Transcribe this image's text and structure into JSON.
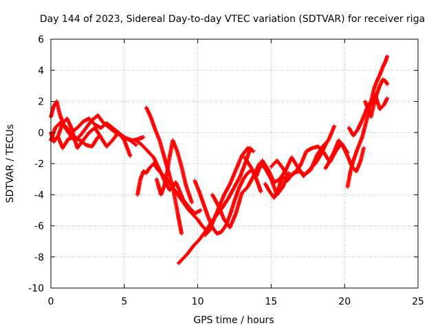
{
  "chart_data": {
    "type": "scatter",
    "title": "Day 144 of 2023, Sidereal Day-to-day VTEC variation (SDTVAR) for receiver riga",
    "xlabel": "GPS time / hours",
    "ylabel": "SDTVAR / TECUs",
    "xlim": [
      0,
      25
    ],
    "ylim": [
      -10,
      6
    ],
    "x_ticks": [
      "0",
      "5",
      "10",
      "15",
      "20",
      "25"
    ],
    "y_ticks": [
      "-10",
      "-8",
      "-6",
      "-4",
      "-2",
      "0",
      "2",
      "4",
      "6"
    ],
    "grid": true,
    "marker": "+",
    "color": "#ff0000",
    "series": [
      {
        "x": [
          0.0,
          0.3,
          0.6,
          1.0,
          1.4,
          1.8,
          2.2,
          2.6,
          3.0,
          3.4,
          3.8,
          4.2,
          4.6,
          5.0,
          5.4,
          5.8
        ],
        "y": [
          -0.5,
          0.3,
          0.6,
          0.4,
          0.0,
          0.3,
          0.7,
          0.9,
          0.5,
          0.3,
          0.6,
          0.3,
          0.0,
          -0.3,
          -0.5,
          -0.8
        ]
      },
      {
        "x": [
          0.0,
          0.2,
          0.4,
          0.6,
          0.9,
          1.2,
          1.6,
          2.0,
          2.4,
          2.8,
          3.2,
          3.6,
          4.0,
          4.4,
          4.8,
          5.2,
          5.6,
          6.0,
          6.3
        ],
        "y": [
          1.0,
          1.7,
          2.0,
          1.2,
          0.4,
          0.0,
          -0.5,
          -0.2,
          0.3,
          0.8,
          1.1,
          0.6,
          0.3,
          0.0,
          -0.2,
          -0.4,
          -0.5,
          -0.4,
          -0.3
        ]
      },
      {
        "x": [
          0.0,
          0.2,
          0.5,
          0.8,
          1.1,
          1.4,
          1.8,
          2.2,
          2.6,
          3.0,
          3.4,
          3.8,
          4.2,
          4.6,
          5.0,
          5.4
        ],
        "y": [
          0.0,
          -0.6,
          -0.2,
          0.6,
          0.9,
          0.3,
          -1.0,
          -0.5,
          0.0,
          0.3,
          -0.3,
          -0.9,
          -0.5,
          0.0,
          -0.5,
          -1.5
        ]
      },
      {
        "x": [
          0.5,
          0.8,
          1.2,
          1.6,
          2.0,
          2.4,
          2.8,
          3.2
        ],
        "y": [
          -0.3,
          -1.0,
          -0.4,
          -0.3,
          -0.5,
          -0.8,
          -0.9,
          -0.3
        ]
      },
      {
        "x": [
          5.9,
          6.1,
          6.3,
          6.5,
          6.7,
          7.0,
          7.3,
          7.6,
          7.9,
          8.2,
          8.5,
          8.8,
          9.1,
          9.4,
          9.7,
          10.0,
          10.3,
          10.6
        ],
        "y": [
          -4.0,
          -3.0,
          -2.5,
          -2.6,
          -2.3,
          -2.0,
          -2.4,
          -2.7,
          -3.0,
          -3.4,
          -3.8,
          -4.2,
          -4.6,
          -5.0,
          -5.3,
          -5.6,
          -6.0,
          -6.3
        ]
      },
      {
        "x": [
          6.5,
          6.8,
          7.1,
          7.4,
          7.7,
          8.0,
          8.3,
          8.5,
          8.7,
          8.9
        ],
        "y": [
          1.6,
          1.0,
          0.2,
          -0.5,
          -1.5,
          -2.5,
          -3.5,
          -4.5,
          -5.5,
          -6.5
        ]
      },
      {
        "x": [
          5.8,
          6.2,
          6.6,
          7.0,
          7.3,
          7.6,
          7.9,
          8.1,
          8.3,
          8.5,
          8.7,
          9.0,
          9.4,
          9.8,
          10.2
        ],
        "y": [
          -0.5,
          -0.8,
          -1.2,
          -1.6,
          -2.2,
          -2.8,
          -3.4,
          -3.7,
          -3.5,
          -3.2,
          -3.6,
          -4.3,
          -4.8,
          -5.2,
          -5.0
        ]
      },
      {
        "x": [
          7.2,
          7.5,
          7.7,
          7.9,
          8.1,
          8.3,
          8.6,
          8.9,
          9.2,
          9.6
        ],
        "y": [
          -3.0,
          -4.0,
          -3.5,
          -2.6,
          -1.5,
          -0.5,
          -1.2,
          -2.2,
          -3.4,
          -4.5
        ]
      },
      {
        "x": [
          8.7,
          9.0,
          9.3,
          9.7,
          10.1,
          10.5,
          10.9,
          11.3,
          11.7,
          12.1,
          12.5,
          12.9,
          13.3,
          13.6
        ],
        "y": [
          -8.4,
          -8.1,
          -7.8,
          -7.3,
          -6.9,
          -6.4,
          -5.8,
          -5.3,
          -4.8,
          -4.2,
          -3.5,
          -2.8,
          -1.8,
          -1.0
        ]
      },
      {
        "x": [
          9.8,
          10.1,
          10.4,
          10.7,
          11.0,
          11.3,
          11.6,
          11.9,
          12.2,
          12.5,
          12.8,
          13.1,
          13.4,
          13.7,
          14.0,
          14.3
        ],
        "y": [
          -3.1,
          -3.8,
          -4.6,
          -5.4,
          -6.1,
          -6.5,
          -6.4,
          -6.0,
          -5.3,
          -4.4,
          -3.6,
          -3.0,
          -2.6,
          -2.4,
          -3.0,
          -3.8
        ]
      },
      {
        "x": [
          10.5,
          10.8,
          11.1,
          11.4,
          11.8,
          12.2,
          12.6,
          13.0,
          13.4,
          13.8
        ],
        "y": [
          -6.6,
          -6.3,
          -5.6,
          -4.9,
          -4.0,
          -3.3,
          -2.4,
          -1.5,
          -1.0,
          -1.2
        ]
      },
      {
        "x": [
          11.0,
          11.4,
          11.8,
          12.2,
          12.6,
          13.0,
          13.4,
          13.8,
          14.2,
          14.6,
          15.0,
          15.4,
          15.8,
          16.2
        ],
        "y": [
          -4.0,
          -4.7,
          -5.6,
          -6.1,
          -5.2,
          -3.9,
          -3.5,
          -2.8,
          -2.0,
          -2.3,
          -3.0,
          -4.0,
          -3.5,
          -2.6
        ]
      },
      {
        "x": [
          13.2,
          13.6,
          14.0,
          14.4,
          14.8,
          15.2,
          15.6,
          16.0,
          16.4,
          16.8,
          17.2,
          17.6,
          18.0,
          18.4,
          18.8
        ],
        "y": [
          -1.6,
          -2.2,
          -2.8,
          -1.8,
          -2.4,
          -3.2,
          -3.0,
          -2.4,
          -1.6,
          -2.2,
          -2.8,
          -2.4,
          -2.0,
          -1.4,
          -0.6
        ]
      },
      {
        "x": [
          14.6,
          14.9,
          15.2,
          15.5,
          15.8,
          16.1,
          16.5,
          16.9,
          17.3,
          17.7,
          18.1,
          18.5,
          18.9,
          19.3
        ],
        "y": [
          -3.3,
          -3.8,
          -4.2,
          -3.6,
          -2.8,
          -3.1,
          -2.6,
          -2.5,
          -2.7,
          -2.4,
          -1.5,
          -0.9,
          -0.5,
          0.4
        ]
      },
      {
        "x": [
          15.0,
          15.4,
          15.8,
          16.2,
          16.6,
          17.0,
          17.4,
          17.8,
          18.2,
          18.6,
          19.0,
          19.4,
          19.8,
          20.2
        ],
        "y": [
          -2.2,
          -1.8,
          -2.3,
          -2.9,
          -2.6,
          -2.1,
          -1.2,
          -1.0,
          -0.9,
          -1.3,
          -1.9,
          -1.2,
          -0.7,
          -1.3
        ]
      },
      {
        "x": [
          18.7,
          19.0,
          19.3,
          19.6,
          19.9,
          20.2,
          20.5,
          20.8,
          21.1,
          21.3
        ],
        "y": [
          -2.3,
          -1.8,
          -1.2,
          -0.5,
          -0.9,
          -1.5,
          -2.2,
          -2.5,
          -1.8,
          -1.0
        ]
      },
      {
        "x": [
          20.2,
          20.4,
          20.6,
          20.9,
          21.2,
          21.5,
          21.8,
          22.1,
          22.4,
          22.7,
          22.9
        ],
        "y": [
          -3.5,
          -2.5,
          -1.8,
          -1.0,
          -0.3,
          0.8,
          1.8,
          2.4,
          1.5,
          1.8,
          2.2
        ]
      },
      {
        "x": [
          20.3,
          20.6,
          20.9,
          21.2,
          21.5,
          21.8,
          22.0,
          22.2,
          22.4,
          22.6,
          22.8,
          22.9
        ],
        "y": [
          0.3,
          -0.2,
          0.2,
          0.8,
          1.5,
          2.0,
          2.8,
          3.3,
          3.7,
          4.2,
          4.6,
          4.9
        ]
      },
      {
        "x": [
          21.4,
          21.6,
          21.8,
          22.0,
          22.2,
          22.4,
          22.6,
          22.8,
          22.9
        ],
        "y": [
          2.0,
          1.5,
          1.0,
          1.8,
          2.5,
          3.0,
          3.4,
          3.3,
          3.1
        ]
      }
    ]
  }
}
